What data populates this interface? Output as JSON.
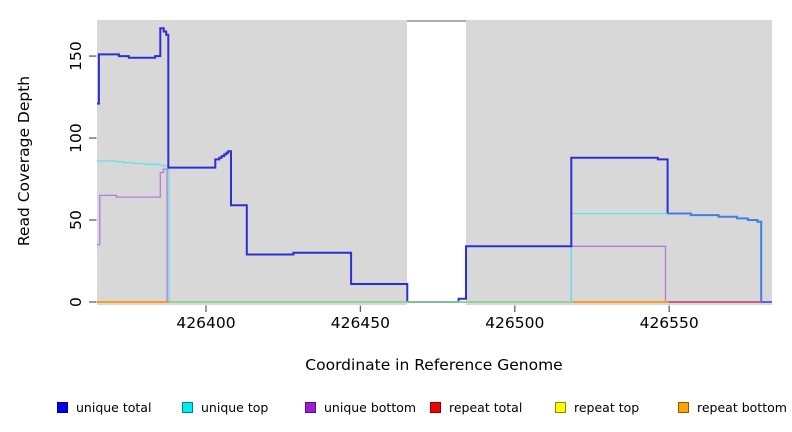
{
  "chart_data": {
    "type": "line",
    "subtype": "step-coverage",
    "title": "",
    "xlabel": "Coordinate in Reference Genome",
    "ylabel": "Read Coverage Depth",
    "x_ticks": [
      426400,
      426450,
      426500,
      426550
    ],
    "y_ticks": [
      0,
      50,
      100,
      150
    ],
    "xlim": [
      426364.7,
      426583.3
    ],
    "ylim": [
      0,
      172
    ],
    "grid": false,
    "plot_background_color": "#d8d8d8",
    "gap_region": {
      "from": 426465.1,
      "to": 426484.2,
      "top_line_color": "#909090"
    },
    "series": [
      {
        "name": "unique bottom",
        "color": "#b47bde",
        "end": 426549.0,
        "steps": [
          [
            426364.7,
            35
          ],
          [
            426365.6,
            65
          ],
          [
            426371.0,
            64
          ],
          [
            426385.2,
            79
          ],
          [
            426386.2,
            81
          ],
          [
            426387.4,
            0
          ],
          [
            426518.3,
            34
          ],
          [
            426548.8,
            0
          ]
        ]
      },
      {
        "name": "unique top",
        "color": "#5fe3ea",
        "end": 426549.5,
        "steps": [
          [
            426364.7,
            86
          ],
          [
            426371.0,
            85.5
          ],
          [
            426373.5,
            85
          ],
          [
            426376.5,
            84.5
          ],
          [
            426380.0,
            84
          ],
          [
            426384.8,
            83.5
          ],
          [
            426386.3,
            83
          ],
          [
            426388.0,
            0
          ],
          [
            426518.3,
            54
          ]
        ]
      },
      {
        "name": "unique total",
        "color": "#2e2ed8",
        "end": 426549.5,
        "steps": [
          [
            426364.7,
            121
          ],
          [
            426365.3,
            151
          ],
          [
            426371.8,
            150
          ],
          [
            426375.0,
            149
          ],
          [
            426383.5,
            150
          ],
          [
            426385.2,
            167
          ],
          [
            426386.3,
            165
          ],
          [
            426387.1,
            163
          ],
          [
            426387.8,
            82
          ],
          [
            426403.0,
            87
          ],
          [
            426404.3,
            88
          ],
          [
            426405.1,
            89
          ],
          [
            426405.9,
            90
          ],
          [
            426406.6,
            91
          ],
          [
            426407.2,
            92
          ],
          [
            426408.1,
            59
          ],
          [
            426413.2,
            29
          ],
          [
            426428.3,
            30
          ],
          [
            426447.0,
            11
          ],
          [
            426465.2,
            0
          ],
          [
            426481.8,
            2
          ],
          [
            426484.2,
            34
          ],
          [
            426518.3,
            88
          ],
          [
            426546.3,
            87
          ],
          [
            426549.5,
            54
          ]
        ]
      },
      {
        "name": "unique total over unique top",
        "color": "#417fe8",
        "end": 426579.8,
        "steps": [
          [
            426549.5,
            54
          ],
          [
            426557.0,
            53
          ],
          [
            426566.0,
            52
          ],
          [
            426572.0,
            51
          ],
          [
            426575.5,
            50
          ],
          [
            426578.6,
            49
          ],
          [
            426579.8,
            0
          ]
        ]
      }
    ],
    "baseline_segments": [
      {
        "name": "repeat bottom baseline",
        "color": "#ff9404",
        "from": 426364.7,
        "to": 426388.0
      },
      {
        "name": "overlap baseline green",
        "color": "#8fd48f",
        "from": 426388.0,
        "to": 426518.9
      },
      {
        "name": "repeat bottom baseline",
        "color": "#ff9404",
        "from": 426518.9,
        "to": 426549.8
      },
      {
        "name": "repeat total baseline",
        "color": "#c7506b",
        "from": 426549.8,
        "to": 426579.8
      },
      {
        "name": "unique baseline violet",
        "color": "#5a50e6",
        "from": 426579.8,
        "to": 426583.3
      }
    ],
    "legend": [
      {
        "label": "unique total",
        "color": "#0101ef"
      },
      {
        "label": "unique top",
        "color": "#00eded"
      },
      {
        "label": "unique bottom",
        "color": "#9b1fd9"
      },
      {
        "label": "repeat total",
        "color": "#ed0404"
      },
      {
        "label": "repeat top",
        "color": "#fdfd02"
      },
      {
        "label": "repeat bottom",
        "color": "#ffa302"
      }
    ]
  }
}
